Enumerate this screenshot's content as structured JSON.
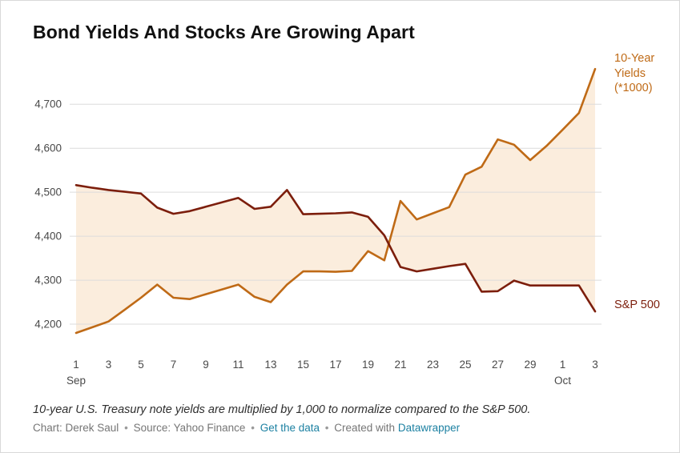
{
  "title": "Bond Yields And Stocks Are Growing Apart",
  "footnote": "10-year U.S. Treasury note yields are multiplied by 1,000 to normalize compared to the S&P 500.",
  "credits": {
    "chart_by": "Chart: Derek Saul",
    "separator": "•",
    "source": "Source: Yahoo Finance",
    "get_data_link": "Get the data",
    "created_with": "Created with",
    "tool_link": "Datawrapper"
  },
  "chart_data": {
    "type": "line",
    "title": "Bond Yields And Stocks Are Growing Apart",
    "grid": true,
    "legend_position": "right-edge-labels",
    "grid_color": "#dcdcdc",
    "axis_text_color": "#494949",
    "fill_between_color": "#fbeddd",
    "x_axis": {
      "range": [
        1,
        33
      ],
      "ticks": [
        {
          "x": 1,
          "label": "1"
        },
        {
          "x": 3,
          "label": "3"
        },
        {
          "x": 5,
          "label": "5"
        },
        {
          "x": 7,
          "label": "7"
        },
        {
          "x": 9,
          "label": "9"
        },
        {
          "x": 11,
          "label": "11"
        },
        {
          "x": 13,
          "label": "13"
        },
        {
          "x": 15,
          "label": "15"
        },
        {
          "x": 17,
          "label": "17"
        },
        {
          "x": 19,
          "label": "19"
        },
        {
          "x": 21,
          "label": "21"
        },
        {
          "x": 23,
          "label": "23"
        },
        {
          "x": 25,
          "label": "25"
        },
        {
          "x": 27,
          "label": "27"
        },
        {
          "x": 29,
          "label": "29"
        },
        {
          "x": 31,
          "label": "1"
        },
        {
          "x": 33,
          "label": "3"
        }
      ],
      "month_labels": [
        {
          "x": 1,
          "label": "Sep"
        },
        {
          "x": 31,
          "label": "Oct"
        }
      ]
    },
    "y_axis": {
      "range": [
        4140,
        4795
      ],
      "ticks": [
        4200,
        4300,
        4400,
        4500,
        4600,
        4700
      ],
      "labels": [
        "4,200",
        "4,300",
        "4,400",
        "4,500",
        "4,600",
        "4,700"
      ]
    },
    "series": [
      {
        "name": "10-Year Yields (*1000)",
        "color": "#bf6a16",
        "points": [
          [
            1,
            4180
          ],
          [
            2,
            4193
          ],
          [
            3,
            4206
          ],
          [
            4,
            4233
          ],
          [
            5,
            4260
          ],
          [
            6,
            4290
          ],
          [
            7,
            4260
          ],
          [
            8,
            4257
          ],
          [
            9,
            4268
          ],
          [
            10,
            4279
          ],
          [
            11,
            4290
          ],
          [
            12,
            4262
          ],
          [
            13,
            4250
          ],
          [
            14,
            4290
          ],
          [
            15,
            4320
          ],
          [
            16,
            4320
          ],
          [
            17,
            4319
          ],
          [
            18,
            4321
          ],
          [
            19,
            4366
          ],
          [
            20,
            4345
          ],
          [
            21,
            4480
          ],
          [
            22,
            4438
          ],
          [
            23,
            4452
          ],
          [
            24,
            4466
          ],
          [
            25,
            4540
          ],
          [
            26,
            4558
          ],
          [
            27,
            4620
          ],
          [
            28,
            4608
          ],
          [
            29,
            4573
          ],
          [
            30,
            4605
          ],
          [
            31,
            4642
          ],
          [
            32,
            4680
          ],
          [
            33,
            4780
          ]
        ]
      },
      {
        "name": "S&P 500",
        "color": "#7c1e0c",
        "points": [
          [
            1,
            4516
          ],
          [
            2,
            4510
          ],
          [
            3,
            4505
          ],
          [
            4,
            4501
          ],
          [
            5,
            4497
          ],
          [
            6,
            4465
          ],
          [
            7,
            4451
          ],
          [
            8,
            4457
          ],
          [
            9,
            4467
          ],
          [
            10,
            4477
          ],
          [
            11,
            4487
          ],
          [
            12,
            4462
          ],
          [
            13,
            4467
          ],
          [
            14,
            4505
          ],
          [
            15,
            4450
          ],
          [
            16,
            4451
          ],
          [
            17,
            4452
          ],
          [
            18,
            4454
          ],
          [
            19,
            4444
          ],
          [
            20,
            4402
          ],
          [
            21,
            4330
          ],
          [
            22,
            4320
          ],
          [
            23,
            4326
          ],
          [
            24,
            4332
          ],
          [
            25,
            4337
          ],
          [
            26,
            4274
          ],
          [
            27,
            4275
          ],
          [
            28,
            4299
          ],
          [
            29,
            4288
          ],
          [
            30,
            4288
          ],
          [
            31,
            4288
          ],
          [
            32,
            4288
          ],
          [
            33,
            4229
          ]
        ]
      }
    ]
  }
}
